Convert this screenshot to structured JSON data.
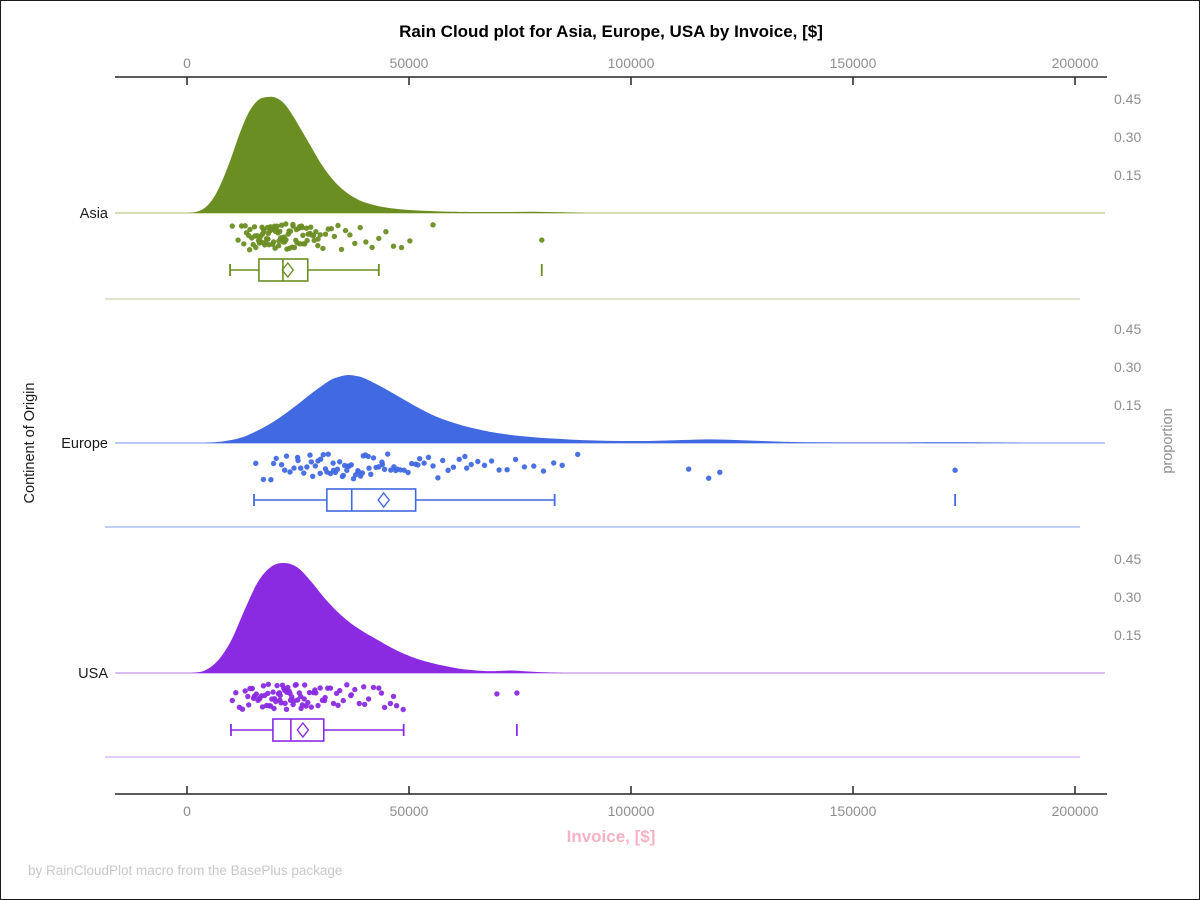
{
  "title": "Rain Cloud plot for Asia, Europe, USA by Invoice, [$]",
  "footnote": "by RainCloudPlot macro from the BasePlus package",
  "x_axis": {
    "label": "Invoice, [$]",
    "tick_values": [
      0,
      50000,
      100000,
      150000,
      200000
    ],
    "tick_labels": [
      "0",
      "50000",
      "100000",
      "150000",
      "200000"
    ]
  },
  "y_axis_left": {
    "label": "Continent of Origin"
  },
  "y_axis_right": {
    "label": "proportion",
    "tick_values": [
      0.45,
      0.3,
      0.15
    ],
    "tick_labels": [
      "0.45",
      "0.30",
      "0.15"
    ]
  },
  "colors": {
    "axis_line": "#262626",
    "tick_text": "#8e8e8e",
    "title_text": "#000000",
    "category_text": "#1a1a1a",
    "x_label_pink": "#f9b2c4",
    "footnote_gray": "#c8c8c8"
  },
  "chart_data": {
    "type": "raincloud",
    "title": "Rain Cloud plot for Asia, Europe, USA by Invoice, [$]",
    "xlabel": "Invoice, [$]",
    "ylabel_left": "Continent of Origin",
    "ylabel_right": "proportion",
    "x_range": [
      -16000,
      207000
    ],
    "proportion_ticks": [
      0.45,
      0.3,
      0.15
    ],
    "legend": "none",
    "groups": [
      {
        "name": "Asia",
        "color": "#6B8E23",
        "baseline_color": "#c6d29c",
        "separator_color": "#dfe4cd",
        "density": {
          "x": [
            0,
            2000,
            4000,
            6000,
            8000,
            10000,
            12000,
            14000,
            16000,
            18000,
            20000,
            22000,
            24000,
            26000,
            28000,
            30000,
            32000,
            34000,
            36000,
            38000,
            40000,
            44000,
            48000,
            52000,
            56000,
            60000,
            66000,
            72000,
            78000,
            84000,
            90000
          ],
          "y": [
            0,
            0.004,
            0.02,
            0.06,
            0.13,
            0.22,
            0.32,
            0.4,
            0.445,
            0.458,
            0.455,
            0.43,
            0.38,
            0.32,
            0.26,
            0.2,
            0.15,
            0.11,
            0.08,
            0.058,
            0.042,
            0.024,
            0.015,
            0.01,
            0.007,
            0.005,
            0.004,
            0.004,
            0.005,
            0.003,
            0
          ]
        },
        "box": {
          "whisker_low": 9700,
          "q1": 16200,
          "median": 21600,
          "mean": 22700,
          "q3": 27200,
          "whisker_high": 43200,
          "outliers": [
            79900
          ]
        },
        "rain": [
          10200,
          11500,
          12300,
          12800,
          13100,
          13400,
          13900,
          14100,
          14200,
          14600,
          14900,
          15200,
          15300,
          15500,
          15800,
          16100,
          16300,
          16450,
          16600,
          16800,
          16900,
          17000,
          17200,
          17350,
          17500,
          17700,
          17900,
          18100,
          18250,
          18300,
          18500,
          18700,
          18800,
          18900,
          19050,
          19100,
          19300,
          19500,
          19700,
          19850,
          19900,
          20100,
          20300,
          20500,
          20650,
          20700,
          20900,
          21100,
          21300,
          21450,
          21600,
          21800,
          21900,
          22000,
          22250,
          22300,
          22500,
          22800,
          23000,
          23050,
          23300,
          23600,
          23850,
          23900,
          24200,
          24500,
          24650,
          24800,
          25100,
          25400,
          25450,
          25800,
          25900,
          26100,
          26250,
          26500,
          26900,
          27050,
          27300,
          27700,
          27850,
          28100,
          28500,
          28650,
          29000,
          29450,
          29500,
          30000,
          30600,
          31200,
          31800,
          32500,
          33200,
          34000,
          34800,
          35700,
          36700,
          37800,
          39000,
          40300,
          41700,
          43200,
          44800,
          46500,
          48300,
          50200,
          55400,
          79900
        ]
      },
      {
        "name": "Europe",
        "color": "#4169E1",
        "baseline_color": "#a6b9ef",
        "separator_color": "#c3cff4",
        "density": {
          "x": [
            4000,
            8000,
            12000,
            16000,
            20000,
            24000,
            28000,
            32000,
            34000,
            36000,
            38000,
            40000,
            44000,
            48000,
            52000,
            56000,
            60000,
            64000,
            68000,
            72000,
            76000,
            80000,
            86000,
            92000,
            98000,
            104000,
            110000,
            116000,
            122000,
            128000,
            134000,
            140000,
            150000,
            160000,
            168000,
            174000,
            180000,
            190000
          ],
          "y": [
            0,
            0.006,
            0.02,
            0.05,
            0.09,
            0.14,
            0.195,
            0.245,
            0.26,
            0.268,
            0.265,
            0.255,
            0.22,
            0.18,
            0.14,
            0.105,
            0.08,
            0.06,
            0.045,
            0.034,
            0.026,
            0.02,
            0.014,
            0.01,
            0.008,
            0.008,
            0.011,
            0.014,
            0.013,
            0.009,
            0.005,
            0.003,
            0.002,
            0.002,
            0.003,
            0.003,
            0.002,
            0
          ]
        },
        "box": {
          "whisker_low": 15100,
          "q1": 31500,
          "median": 37100,
          "mean": 44300,
          "q3": 51500,
          "whisker_high": 82800,
          "outliers": [
            173000
          ]
        },
        "rain": [
          15500,
          17200,
          18900,
          19500,
          20100,
          21300,
          22000,
          22400,
          23200,
          24100,
          24900,
          25000,
          25600,
          26300,
          27000,
          27700,
          28000,
          28300,
          28900,
          29500,
          30000,
          30100,
          30700,
          31200,
          31500,
          31800,
          32300,
          32900,
          33000,
          33400,
          33900,
          34400,
          35000,
          35200,
          35500,
          36000,
          36200,
          36500,
          37000,
          37500,
          38000,
          38500,
          38600,
          39100,
          39500,
          39700,
          40200,
          40800,
          41000,
          41400,
          42000,
          42600,
          43200,
          43900,
          44000,
          44500,
          45200,
          45900,
          46600,
          47000,
          47400,
          48100,
          48900,
          49800,
          50600,
          51500,
          52000,
          52400,
          53400,
          54400,
          55400,
          56500,
          57600,
          58800,
          60000,
          61300,
          62600,
          63000,
          64000,
          65500,
          67000,
          68600,
          70300,
          72100,
          74000,
          76000,
          78100,
          80300,
          82600,
          84500,
          88000,
          113000,
          117500,
          120000,
          173000
        ]
      },
      {
        "name": "USA",
        "color": "#8A2BE2",
        "baseline_color": "#cfa9ef",
        "separator_color": "#e0ccf5",
        "density": {
          "x": [
            1000,
            4000,
            7000,
            10000,
            13000,
            16000,
            19000,
            22000,
            25000,
            28000,
            31000,
            34000,
            37000,
            40000,
            43000,
            46000,
            49000,
            52000,
            55000,
            58000,
            61000,
            64000,
            67000,
            70000,
            73000,
            76000,
            80000,
            85000
          ],
          "y": [
            0,
            0.01,
            0.05,
            0.13,
            0.25,
            0.36,
            0.42,
            0.434,
            0.415,
            0.36,
            0.295,
            0.24,
            0.195,
            0.16,
            0.13,
            0.1,
            0.075,
            0.055,
            0.04,
            0.028,
            0.018,
            0.012,
            0.008,
            0.008,
            0.01,
            0.007,
            0.003,
            0
          ]
        },
        "box": {
          "whisker_low": 9900,
          "q1": 19350,
          "median": 23400,
          "mean": 26100,
          "q3": 30800,
          "whisker_high": 48800,
          "outliers": [
            74300
          ]
        },
        "rain": [
          10200,
          11000,
          11800,
          12500,
          13100,
          13700,
          13900,
          14200,
          14700,
          15000,
          15200,
          15600,
          16000,
          16300,
          16400,
          16800,
          17000,
          17200,
          17500,
          17900,
          18200,
          18300,
          18500,
          18800,
          19100,
          19400,
          19600,
          19700,
          20000,
          20300,
          20600,
          20800,
          20900,
          21000,
          21200,
          21500,
          21800,
          22000,
          22100,
          22400,
          22500,
          22700,
          23000,
          23200,
          23300,
          23600,
          23900,
          24200,
          24400,
          24600,
          24900,
          25300,
          25600,
          25700,
          26000,
          26400,
          26500,
          26800,
          27200,
          27600,
          28000,
          28500,
          28800,
          29000,
          29500,
          30000,
          30500,
          31000,
          31100,
          31700,
          32300,
          33000,
          33700,
          34000,
          34400,
          35200,
          36000,
          36900,
          37000,
          37800,
          38800,
          39800,
          40000,
          40900,
          42000,
          43200,
          43800,
          44500,
          45800,
          46500,
          47200,
          48700,
          69800,
          74300
        ]
      }
    ]
  }
}
